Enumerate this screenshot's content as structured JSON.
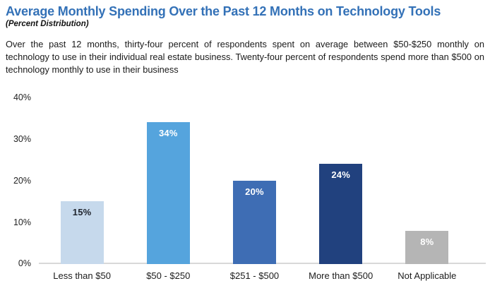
{
  "header": {
    "title": "Average Monthly Spending Over the Past 12 Months on Technology Tools",
    "subtitle": "(Percent Distribution)"
  },
  "description": "Over the past 12 months, thirty-four percent of respondents spent on average between $50-$250 monthly on technology to use in their individual real estate business. Twenty-four percent of respondents spend more than $500 on technology monthly to use in their business",
  "chart_data": {
    "type": "bar",
    "title": "Average Monthly Spending Over the Past 12 Months on Technology Tools",
    "subtitle": "(Percent Distribution)",
    "categories": [
      "Less than $50",
      "$50 - $250",
      "$251 - $500",
      "More than $500",
      "Not Applicable"
    ],
    "values": [
      15,
      34,
      20,
      24,
      8
    ],
    "value_labels": [
      "15%",
      "34%",
      "20%",
      "24%",
      "8%"
    ],
    "bar_colors": [
      "#c6d9ec",
      "#55a4dd",
      "#3e6db4",
      "#21417e",
      "#b5b5b5"
    ],
    "value_label_colors": [
      "#20252e",
      "#ffffff",
      "#ffffff",
      "#ffffff",
      "#ffffff"
    ],
    "xlabel": "",
    "ylabel": "",
    "ylim": [
      0,
      40
    ],
    "yticks": [
      "0%",
      "10%",
      "20%",
      "30%",
      "40%"
    ],
    "grid": false,
    "legend": "none"
  },
  "colors": {
    "title_accent": "#3371b7",
    "body_text": "#1a1a1a",
    "baseline": "#d8d8d8"
  }
}
